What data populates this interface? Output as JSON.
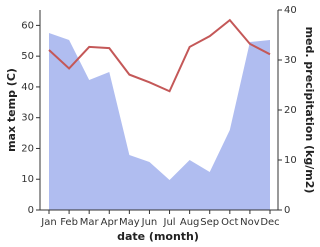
{
  "chart_data": {
    "type": "line",
    "categories": [
      "Jan",
      "Feb",
      "Mar",
      "Apr",
      "May",
      "Jun",
      "Jul",
      "Aug",
      "Sep",
      "Oct",
      "Nov",
      "Dec"
    ],
    "xlabel": "date (month)",
    "ylabel": "max temp (C)",
    "y2label": "med. precipitation (kg/m2)",
    "ylim": [
      0,
      65
    ],
    "yticks": [
      0,
      10,
      20,
      30,
      40,
      50,
      60
    ],
    "y2lim": [
      0,
      40
    ],
    "y2ticks": [
      0,
      10,
      20,
      30,
      40
    ],
    "series": [
      {
        "name": "med. precipitation",
        "axis": "y2",
        "area": true,
        "color": "#b0bdf0",
        "values": [
          35.4,
          34,
          26,
          27.6,
          11,
          9.6,
          6,
          10,
          7.6,
          16,
          33.6,
          34
        ]
      },
      {
        "name": "max temp",
        "color": "#c45858",
        "values": [
          52,
          46,
          53,
          52.6,
          44,
          41.5,
          38.6,
          53,
          56.5,
          61.7,
          54,
          50.6
        ]
      }
    ]
  }
}
